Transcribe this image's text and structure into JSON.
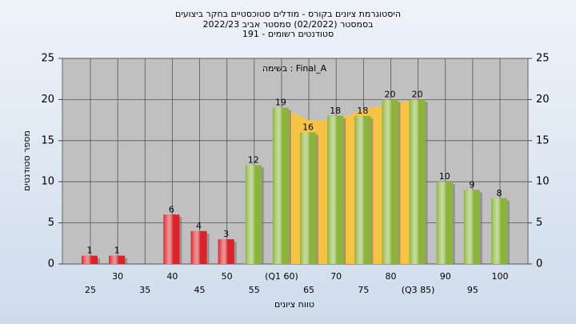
{
  "chart_data": {
    "type": "bar",
    "title": "היסטוגרמת ציונים בקורס - מודלים סטוכסטיים בחקר ביצועים",
    "subtitle": "בסמסטר  (02/2022)  סמסטר אביב 2022/23",
    "subtitle2": "סטודנטים רשומים - 191",
    "annotation": "בשימה : Final_A",
    "x_label": "טווח ציונים",
    "y_label": "מספר סטודנטים",
    "categories": [
      "25",
      "30",
      "35",
      "40",
      "45",
      "50",
      "55",
      "(Q1 60)",
      "65",
      "70",
      "75",
      "80",
      "(Q3 85)",
      "90",
      "95",
      "100"
    ],
    "values": [
      1,
      1,
      null,
      6,
      4,
      3,
      12,
      19,
      16,
      18,
      18,
      20,
      20,
      10,
      9,
      8
    ],
    "colors": [
      "#d8232a",
      "#d8232a",
      "#d8232a",
      "#d8232a",
      "#d8232a",
      "#d8232a",
      "#8cb43c",
      "#8cb43c",
      "#8cb43c",
      "#8cb43c",
      "#8cb43c",
      "#8cb43c",
      "#8cb43c",
      "#8cb43c",
      "#8cb43c",
      "#8cb43c"
    ],
    "highlight_area": {
      "color": "#f7c344",
      "values": [
        null,
        null,
        null,
        null,
        null,
        null,
        null,
        19,
        17.5,
        17.5,
        18.8,
        19.5,
        20,
        null,
        null,
        null
      ]
    },
    "ylim": [
      0,
      25
    ],
    "yticks": [
      0,
      5,
      10,
      15,
      20,
      25
    ],
    "y2lim": [
      0,
      25
    ],
    "y2ticks": [
      0,
      5,
      10,
      15,
      20,
      25
    ],
    "grid": true
  }
}
